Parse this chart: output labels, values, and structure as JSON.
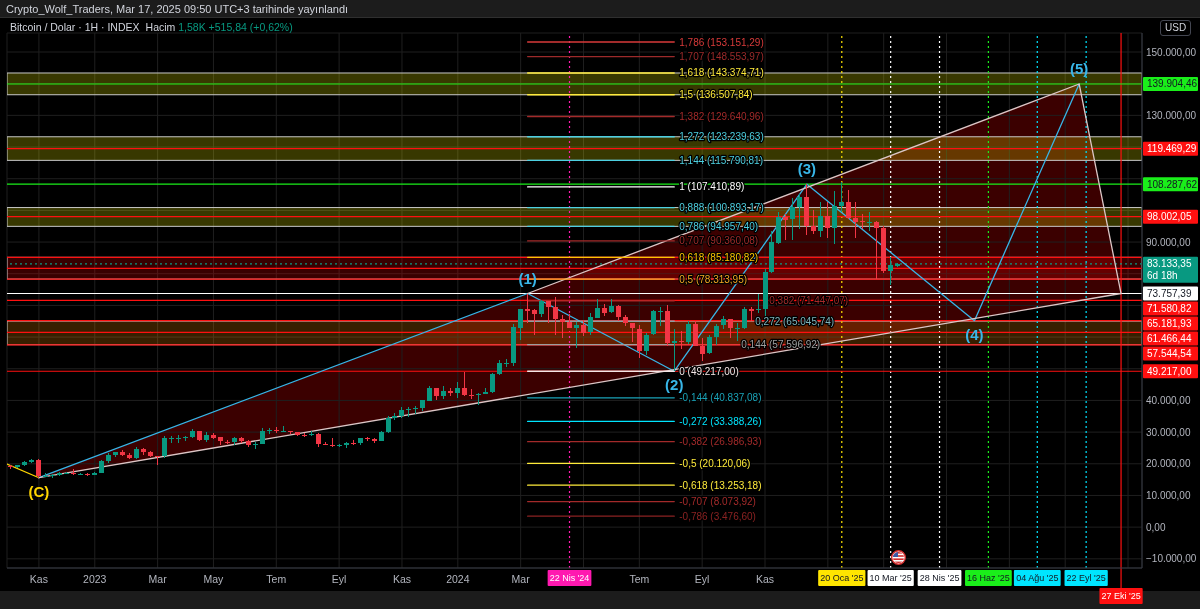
{
  "chart_data": {
    "type": "candlestick",
    "title": "Bitcoin / Dolar · 1H · INDEX",
    "subtitle": "Hacim 1,58K +515,84 (+0,62%)",
    "x": [
      "2022-10-10",
      "2022-10-17",
      "2022-10-24",
      "2022-10-31",
      "2022-11-07",
      "2022-11-14",
      "2022-11-21",
      "2022-11-28",
      "2022-12-05",
      "2022-12-12",
      "2022-12-19",
      "2022-12-26",
      "2023-01-02",
      "2023-01-09",
      "2023-01-16",
      "2023-01-23",
      "2023-01-30",
      "2023-02-06",
      "2023-02-13",
      "2023-02-20",
      "2023-02-27",
      "2023-03-06",
      "2023-03-13",
      "2023-03-20",
      "2023-03-27",
      "2023-04-03",
      "2023-04-10",
      "2023-04-17",
      "2023-04-24",
      "2023-05-01",
      "2023-05-08",
      "2023-05-15",
      "2023-05-22",
      "2023-05-29",
      "2023-06-05",
      "2023-06-12",
      "2023-06-19",
      "2023-06-26",
      "2023-07-03",
      "2023-07-10",
      "2023-07-17",
      "2023-07-24",
      "2023-07-31",
      "2023-08-07",
      "2023-08-14",
      "2023-08-21",
      "2023-08-28",
      "2023-09-04",
      "2023-09-11",
      "2023-09-18",
      "2023-09-25",
      "2023-10-02",
      "2023-10-09",
      "2023-10-16",
      "2023-10-23",
      "2023-10-30",
      "2023-11-06",
      "2023-11-13",
      "2023-11-20",
      "2023-11-27",
      "2023-12-04",
      "2023-12-11",
      "2023-12-18",
      "2023-12-25",
      "2024-01-01",
      "2024-01-08",
      "2024-01-15",
      "2024-01-22",
      "2024-01-29",
      "2024-02-05",
      "2024-02-12",
      "2024-02-19",
      "2024-02-26",
      "2024-03-04",
      "2024-03-11",
      "2024-03-18",
      "2024-03-25",
      "2024-04-01",
      "2024-04-08",
      "2024-04-15",
      "2024-04-22",
      "2024-04-29",
      "2024-05-06",
      "2024-05-13",
      "2024-05-20",
      "2024-05-27",
      "2024-06-03",
      "2024-06-10",
      "2024-06-17",
      "2024-06-24",
      "2024-07-01",
      "2024-07-08",
      "2024-07-15",
      "2024-07-22",
      "2024-07-29",
      "2024-08-05",
      "2024-08-12",
      "2024-08-19",
      "2024-08-26",
      "2024-09-02",
      "2024-09-09",
      "2024-09-16",
      "2024-09-23",
      "2024-09-30",
      "2024-10-07",
      "2024-10-14",
      "2024-10-21",
      "2024-10-28",
      "2024-11-04",
      "2024-11-11",
      "2024-11-18",
      "2024-11-25",
      "2024-12-02",
      "2024-12-09",
      "2024-12-16",
      "2024-12-23",
      "2024-12-30",
      "2025-01-06",
      "2025-01-13",
      "2025-01-20",
      "2025-01-27",
      "2025-02-03",
      "2025-02-10",
      "2025-02-17",
      "2025-02-24",
      "2025-03-03",
      "2025-03-10",
      "2025-03-17"
    ],
    "ohlc": [
      [
        19200,
        19600,
        18200,
        19100
      ],
      [
        19100,
        19700,
        18700,
        19600
      ],
      [
        19600,
        21000,
        19200,
        20600
      ],
      [
        20600,
        21500,
        20100,
        21200
      ],
      [
        21200,
        21500,
        15600,
        16300
      ],
      [
        16300,
        17200,
        15800,
        16300
      ],
      [
        16300,
        16800,
        15500,
        16500
      ],
      [
        16500,
        17400,
        16100,
        17100
      ],
      [
        17100,
        17400,
        16900,
        17100
      ],
      [
        17100,
        18400,
        16500,
        16800
      ],
      [
        16800,
        17100,
        16400,
        16800
      ],
      [
        16800,
        17000,
        16300,
        16500
      ],
      [
        16500,
        17400,
        16500,
        17100
      ],
      [
        17100,
        21300,
        17100,
        20900
      ],
      [
        20900,
        23400,
        20400,
        22700
      ],
      [
        22700,
        23800,
        22300,
        23700
      ],
      [
        23700,
        24200,
        22600,
        22900
      ],
      [
        22900,
        23500,
        21500,
        21800
      ],
      [
        21800,
        25300,
        21400,
        24600
      ],
      [
        24600,
        25100,
        22800,
        23600
      ],
      [
        23600,
        23900,
        22000,
        22400
      ],
      [
        22400,
        22600,
        19600,
        22200
      ],
      [
        22200,
        28900,
        21900,
        28000
      ],
      [
        28000,
        28900,
        26600,
        28000
      ],
      [
        28000,
        29200,
        26500,
        28200
      ],
      [
        28200,
        28800,
        27300,
        28300
      ],
      [
        28300,
        31000,
        28200,
        30300
      ],
      [
        30300,
        30500,
        27100,
        27600
      ],
      [
        27600,
        30000,
        27000,
        29200
      ],
      [
        29200,
        29800,
        27700,
        28400
      ],
      [
        28400,
        28500,
        25800,
        27000
      ],
      [
        27000,
        27600,
        26300,
        26800
      ],
      [
        26800,
        28500,
        25900,
        28100
      ],
      [
        28100,
        28500,
        26600,
        27100
      ],
      [
        27100,
        27400,
        25400,
        25900
      ],
      [
        25900,
        26800,
        24800,
        26300
      ],
      [
        26300,
        31400,
        26300,
        30500
      ],
      [
        30500,
        31300,
        29500,
        30600
      ],
      [
        30600,
        31500,
        29700,
        30200
      ],
      [
        30200,
        31800,
        30000,
        30300
      ],
      [
        30300,
        30400,
        29500,
        30100
      ],
      [
        30100,
        30100,
        28900,
        29200
      ],
      [
        29200,
        29700,
        28600,
        29100
      ],
      [
        29100,
        30200,
        28700,
        29300
      ],
      [
        29300,
        29700,
        25200,
        26100
      ],
      [
        26100,
        26800,
        25800,
        26000
      ],
      [
        26000,
        28100,
        25400,
        25800
      ],
      [
        25800,
        26400,
        25400,
        25800
      ],
      [
        25800,
        26900,
        24900,
        26500
      ],
      [
        26500,
        27500,
        26000,
        26300
      ],
      [
        26300,
        28100,
        26000,
        28000
      ],
      [
        28000,
        28600,
        27200,
        27900
      ],
      [
        27900,
        28000,
        26500,
        27200
      ],
      [
        27200,
        30400,
        27100,
        30000
      ],
      [
        30000,
        35200,
        29800,
        34500
      ],
      [
        34500,
        36000,
        33900,
        35100
      ],
      [
        35100,
        38000,
        34500,
        37100
      ],
      [
        37100,
        38000,
        34800,
        37400
      ],
      [
        37400,
        38400,
        35600,
        37500
      ],
      [
        37500,
        40000,
        36700,
        40000
      ],
      [
        40000,
        44700,
        39900,
        44000
      ],
      [
        44000,
        44000,
        40200,
        41400
      ],
      [
        41400,
        44400,
        40500,
        43000
      ],
      [
        43000,
        43800,
        41300,
        42300
      ],
      [
        42300,
        45900,
        40800,
        43900
      ],
      [
        43900,
        49000,
        41500,
        41700
      ],
      [
        41700,
        43600,
        40300,
        41600
      ],
      [
        41600,
        42300,
        38600,
        42000
      ],
      [
        42000,
        43900,
        41900,
        42600
      ],
      [
        42600,
        48600,
        42300,
        48300
      ],
      [
        48300,
        52800,
        48100,
        51700
      ],
      [
        51700,
        53000,
        50600,
        51700
      ],
      [
        51700,
        64000,
        50900,
        63100
      ],
      [
        63100,
        69000,
        59000,
        69000
      ],
      [
        69000,
        73757.39,
        64500,
        68400
      ],
      [
        68400,
        68900,
        60800,
        67200
      ],
      [
        67200,
        71800,
        66400,
        71300
      ],
      [
        71300,
        71300,
        64500,
        69400
      ],
      [
        69400,
        72800,
        60800,
        65700
      ],
      [
        65700,
        66900,
        59600,
        64900
      ],
      [
        64900,
        67200,
        62800,
        63100
      ],
      [
        63100,
        64700,
        56600,
        63900
      ],
      [
        63900,
        65500,
        60200,
        61500
      ],
      [
        61500,
        67700,
        60800,
        66300
      ],
      [
        66300,
        72000,
        66100,
        69300
      ],
      [
        69300,
        70600,
        66700,
        67800
      ],
      [
        67800,
        72000,
        67600,
        69700
      ],
      [
        69700,
        70200,
        65100,
        66200
      ],
      [
        66200,
        66900,
        63400,
        64300
      ],
      [
        64300,
        64500,
        58400,
        62700
      ],
      [
        62700,
        63800,
        53500,
        55900
      ],
      [
        55900,
        61400,
        54300,
        60800
      ],
      [
        60800,
        68400,
        60600,
        68200
      ],
      [
        68200,
        69400,
        63500,
        68300
      ],
      [
        68300,
        70000,
        57100,
        58200
      ],
      [
        58200,
        62700,
        49217,
        58700
      ],
      [
        58700,
        61800,
        56100,
        58400
      ],
      [
        58400,
        65000,
        57800,
        64200
      ],
      [
        64200,
        65000,
        57200,
        57300
      ],
      [
        57300,
        59800,
        52600,
        54900
      ],
      [
        54900,
        60700,
        54600,
        60000
      ],
      [
        60000,
        64100,
        57600,
        63600
      ],
      [
        63600,
        66500,
        62700,
        65600
      ],
      [
        65600,
        65700,
        59800,
        62800
      ],
      [
        62800,
        64500,
        58900,
        62900
      ],
      [
        62900,
        69400,
        62400,
        69000
      ],
      [
        69000,
        69500,
        65100,
        68400
      ],
      [
        68400,
        73600,
        67500,
        68800
      ],
      [
        68800,
        81500,
        66800,
        80400
      ],
      [
        80400,
        93500,
        80200,
        89900
      ],
      [
        89900,
        99600,
        89400,
        98000
      ],
      [
        98000,
        98900,
        90800,
        97200
      ],
      [
        97200,
        104000,
        90500,
        101100
      ],
      [
        101100,
        105300,
        94200,
        104300
      ],
      [
        104300,
        108287.62,
        92200,
        95200
      ],
      [
        95200,
        100000,
        92500,
        93700
      ],
      [
        93700,
        102700,
        91500,
        98300
      ],
      [
        98300,
        102700,
        91200,
        94500
      ],
      [
        94500,
        106000,
        89300,
        101300
      ],
      [
        101300,
        109000,
        99500,
        102600
      ],
      [
        102600,
        106400,
        97200,
        97700
      ],
      [
        97700,
        102500,
        91200,
        96500
      ],
      [
        96500,
        98800,
        94100,
        96100
      ],
      [
        96100,
        99500,
        93400,
        96300
      ],
      [
        96300,
        96500,
        78200,
        94300
      ],
      [
        94300,
        95000,
        80100,
        80700
      ],
      [
        80700,
        85300,
        76600,
        82617.51
      ],
      [
        82617.51,
        83500,
        82000,
        83133.35
      ]
    ],
    "xlim": [
      "2022-10-06",
      "2025-11-17"
    ],
    "xticks": [
      {
        "value": "2022-11-07",
        "label": "Kas"
      },
      {
        "value": "2023-01-02",
        "label": "2023"
      },
      {
        "value": "2023-03-06",
        "label": "Mar"
      },
      {
        "value": "2023-05-01",
        "label": "May"
      },
      {
        "value": "2023-07-03",
        "label": "Tem"
      },
      {
        "value": "2023-09-04",
        "label": "Eyl"
      },
      {
        "value": "2023-11-06",
        "label": "Kas"
      },
      {
        "value": "2024-01-01",
        "label": "2024"
      },
      {
        "value": "2024-03-04",
        "label": "Mar"
      },
      {
        "value": "2024-05-06",
        "label": null
      },
      {
        "value": "2024-07-01",
        "label": "Tem"
      },
      {
        "value": "2024-09-02",
        "label": "Eyl"
      },
      {
        "value": "2024-11-04",
        "label": "Kas"
      },
      {
        "value": "2025-01-06",
        "label": null
      },
      {
        "value": "2025-03-03",
        "label": null
      },
      {
        "value": "2025-05-05",
        "label": null
      },
      {
        "value": "2025-07-07",
        "label": null
      },
      {
        "value": "2025-09-01",
        "label": null
      },
      {
        "value": "2025-11-03",
        "label": null
      }
    ],
    "ylim": [
      -12900,
      156000
    ],
    "yticks": [
      {
        "value": -10000,
        "label": "−10.000,00"
      },
      {
        "value": 0,
        "label": "0,00"
      },
      {
        "value": 10000,
        "label": "10.000,00"
      },
      {
        "value": 20000,
        "label": "20.000,00"
      },
      {
        "value": 30000,
        "label": "30.000,00"
      },
      {
        "value": 40000,
        "label": "40.000,00"
      },
      {
        "value": 50000,
        "label": null
      },
      {
        "value": 60000,
        "label": null
      },
      {
        "value": 70000,
        "label": null
      },
      {
        "value": 80000,
        "label": null
      },
      {
        "value": 90000,
        "label": "90.000,00"
      },
      {
        "value": 100000,
        "label": null
      },
      {
        "value": 110000,
        "label": null
      },
      {
        "value": 120000,
        "label": null
      },
      {
        "value": 130000,
        "label": "130.000,00"
      },
      {
        "value": 140000,
        "label": null
      },
      {
        "value": 150000,
        "label": "150.000,00"
      }
    ],
    "grid": true,
    "series": [
      {
        "type": "line",
        "color": "#ffd600",
        "x": [
          "2022-10-06",
          "2022-11-07"
        ],
        "values": [
          19900,
          15600
        ]
      },
      {
        "type": "line",
        "color": "#38b6e8",
        "x": [
          "2022-11-07",
          "2024-03-11",
          "2024-08-05",
          "2024-12-16",
          "2025-06-02",
          "2025-09-15"
        ],
        "values": [
          15600,
          73757.39,
          49217,
          108287.62,
          65181.93,
          139904.46
        ]
      },
      {
        "type": "line",
        "color": "#dcc6c6",
        "x": [
          "2024-03-11",
          "2025-09-15",
          "2025-10-27"
        ],
        "values": [
          73757.39,
          139904.46,
          73757.39
        ]
      },
      {
        "type": "line",
        "color": "#dcc6c6",
        "x": [
          "2022-11-07",
          "2025-10-27"
        ],
        "values": [
          15600,
          73757.39
        ]
      },
      {
        "type": "line",
        "name": "1,786 (153.151,29)",
        "color": "#d83a3a",
        "x": [
          "2024-03-11",
          "2024-08-05"
        ],
        "values": [
          153151.29,
          153151.29
        ]
      },
      {
        "type": "line",
        "name": "1,707 (148.553,97)",
        "color": "#9c2a2a",
        "x": [
          "2024-03-11",
          "2024-08-05"
        ],
        "values": [
          148553.97,
          148553.97
        ]
      },
      {
        "type": "line",
        "name": "1,618 (143.374,71)",
        "color": "#ffeb3b",
        "x": [
          "2024-03-11",
          "2024-08-05"
        ],
        "values": [
          143374.71,
          143374.71
        ]
      },
      {
        "type": "line",
        "name": "1,5 (136.507,84)",
        "color": "#ffeb3b",
        "x": [
          "2024-03-11",
          "2024-08-05"
        ],
        "values": [
          136507.84,
          136507.84
        ]
      },
      {
        "type": "line",
        "name": "1,382 (129.640,96)",
        "color": "#a32a2a",
        "x": [
          "2024-03-11",
          "2024-08-05"
        ],
        "values": [
          129640.96,
          129640.96
        ]
      },
      {
        "type": "line",
        "name": "1,272 (123.239,63)",
        "color": "#4dd0e1",
        "x": [
          "2024-03-11",
          "2024-08-05"
        ],
        "values": [
          123239.63,
          123239.63
        ]
      },
      {
        "type": "line",
        "name": "1,144 (115.790,81)",
        "color": "#4dd0e1",
        "x": [
          "2024-03-11",
          "2024-08-05"
        ],
        "values": [
          115790.81,
          115790.81
        ]
      },
      {
        "type": "line",
        "name": "1 (107.410,89)",
        "color": "#ffffff",
        "x": [
          "2024-03-11",
          "2024-08-05"
        ],
        "values": [
          107410.89,
          107410.89
        ]
      },
      {
        "type": "line",
        "name": "0,888 (100.893,17)",
        "color": "#4dd0e1",
        "x": [
          "2024-03-11",
          "2024-08-05"
        ],
        "values": [
          100893.17,
          100893.17
        ]
      },
      {
        "type": "line",
        "name": "0,786 (94.957,40)",
        "color": "#4dd0e1",
        "x": [
          "2024-03-11",
          "2024-08-05"
        ],
        "values": [
          94957.4,
          94957.4
        ]
      },
      {
        "type": "line",
        "name": "0,707 (90.360,08)",
        "color": "#a32a2a",
        "x": [
          "2024-03-11",
          "2024-08-05"
        ],
        "values": [
          90360.08,
          90360.08
        ]
      },
      {
        "type": "line",
        "name": "0,618 (85.180,82)",
        "color": "#ffc400",
        "x": [
          "2024-03-11",
          "2024-08-05"
        ],
        "values": [
          85180.82,
          85180.82
        ]
      },
      {
        "type": "line",
        "name": "0,5 (78.313,95)",
        "color": "#f5a623",
        "x": [
          "2024-03-11",
          "2024-08-05"
        ],
        "values": [
          78313.95,
          78313.95
        ]
      },
      {
        "type": "line",
        "name": "0,382 (71.447,07)",
        "color": "#a32a2a",
        "x": [
          "2024-03-11",
          "2024-08-05"
        ],
        "values": [
          71447.07,
          71447.07
        ]
      },
      {
        "type": "line",
        "name": "0,272 (65.045,74)",
        "color": "#7fb3bb",
        "x": [
          "2024-03-11",
          "2024-08-05"
        ],
        "values": [
          65045.74,
          65045.74
        ]
      },
      {
        "type": "line",
        "name": "0,144 (57.596,92)",
        "color": "#9e9e9e",
        "x": [
          "2024-03-11",
          "2024-08-05"
        ],
        "values": [
          57596.92,
          57596.92
        ]
      },
      {
        "type": "line",
        "name": "0 (49.217,00)",
        "color": "#f4e6e6",
        "x": [
          "2024-03-11",
          "2024-08-05"
        ],
        "values": [
          49217.0,
          49217.0
        ]
      },
      {
        "type": "line",
        "name": "-0,144 (40.837,08)",
        "color": "#1aa3b8",
        "x": [
          "2024-03-11",
          "2024-08-05"
        ],
        "values": [
          40837.08,
          40837.08
        ]
      },
      {
        "type": "line",
        "name": "-0,272 (33.388,26)",
        "color": "#00e5ff",
        "x": [
          "2024-03-11",
          "2024-08-05"
        ],
        "values": [
          33388.26,
          33388.26
        ]
      },
      {
        "type": "line",
        "name": "-0,382 (26.986,93)",
        "color": "#a32a2a",
        "x": [
          "2024-03-11",
          "2024-08-05"
        ],
        "values": [
          26986.93,
          26986.93
        ]
      },
      {
        "type": "line",
        "name": "-0,5 (20.120,06)",
        "color": "#ffeb3b",
        "x": [
          "2024-03-11",
          "2024-08-05"
        ],
        "values": [
          20120.06,
          20120.06
        ]
      },
      {
        "type": "line",
        "name": "-0,618 (13.253,18)",
        "color": "#ffeb3b",
        "x": [
          "2024-03-11",
          "2024-08-05"
        ],
        "values": [
          13253.18,
          13253.18
        ]
      },
      {
        "type": "line",
        "name": "-0,707 (8.073,92)",
        "color": "#a32a2a",
        "x": [
          "2024-03-11",
          "2024-08-05"
        ],
        "values": [
          8073.92,
          8073.92
        ]
      },
      {
        "type": "line",
        "name": "-0,786 (3.476,60)",
        "color": "#8b2222",
        "x": [
          "2024-03-11",
          "2024-08-05"
        ],
        "values": [
          3476.6,
          3476.6
        ]
      }
    ],
    "bands": [
      {
        "axis": "y",
        "from": 136507.84,
        "to": 143374.71,
        "color": "#ffff00"
      },
      {
        "axis": "y",
        "from": 115790.81,
        "to": 123239.63,
        "color": "#ffff00"
      },
      {
        "axis": "y",
        "from": 94957.4,
        "to": 100893.17,
        "color": "#ffff00"
      },
      {
        "axis": "y",
        "from": 78313.95,
        "to": 85180.82,
        "color": "#ff0000"
      },
      {
        "axis": "y",
        "from": 57596.92,
        "to": 65045.74,
        "color": "#ff8c00"
      }
    ],
    "ref_lines": [
      {
        "axis": "x",
        "value": "2024-04-22",
        "label": "22 Nis '24",
        "color": "#ff19b0",
        "line_style": "dotted"
      },
      {
        "axis": "x",
        "value": "2025-01-20",
        "label": "20 Oca '25",
        "color": "#ffe500",
        "line_style": "dotted"
      },
      {
        "axis": "x",
        "value": "2025-03-10",
        "label": "10 Mar '25",
        "color": "#ffffff",
        "line_style": "dotted"
      },
      {
        "axis": "x",
        "value": "2025-04-28",
        "label": "28 Nis '25",
        "color": "#ffffff",
        "line_style": "dotted"
      },
      {
        "axis": "x",
        "value": "2025-06-16",
        "label": "16 Haz '25",
        "color": "#1aee1a",
        "line_style": "dotted"
      },
      {
        "axis": "x",
        "value": "2025-08-04",
        "label": "04 Ağu '25",
        "color": "#00e5ff",
        "line_style": "dotted"
      },
      {
        "axis": "x",
        "value": "2025-09-22",
        "label": "22 Eyl '25",
        "color": "#00e5ff",
        "line_style": "dotted"
      },
      {
        "axis": "x",
        "value": "2025-10-27",
        "label": "27 Eki '25",
        "color": "#ff1010",
        "line_style": "solid"
      },
      {
        "axis": "y",
        "value": 85180.82,
        "color": "#ff1010"
      },
      {
        "axis": "y",
        "value": 81700,
        "color": "#ff1010"
      },
      {
        "axis": "y",
        "value": 78313.95,
        "color": "#ff1010"
      },
      {
        "axis": "y",
        "value": 139904.46,
        "label": "139.904,46",
        "color": "#1aee1a"
      },
      {
        "axis": "y",
        "value": 119469.29,
        "label": "119.469,29",
        "color": "#ff1010"
      },
      {
        "axis": "y",
        "value": 108287.62,
        "label": "108.287,62",
        "color": "#1aee1a"
      },
      {
        "axis": "y",
        "value": 98002.05,
        "label": "98.002,05",
        "color": "#ff1010"
      },
      {
        "axis": "y",
        "value": 83133.35,
        "label": "83.133,35 6d 18h",
        "color": "#089981",
        "line_style": "dotted"
      },
      {
        "axis": "y",
        "value": 73757.39,
        "label": "73.757,39",
        "color": "#ffffff"
      },
      {
        "axis": "y",
        "value": 71580.82,
        "label": "71.580,82",
        "color": "#ff1010"
      },
      {
        "axis": "y",
        "value": 65181.93,
        "label": "65.181,93",
        "color": "#ff1010"
      },
      {
        "axis": "y",
        "value": 61466.44,
        "label": "61.466,44",
        "color": "#ff1010"
      },
      {
        "axis": "y",
        "value": 57544.54,
        "label": "57.544,54",
        "color": "#ff1010"
      },
      {
        "axis": "y",
        "value": 49217.0,
        "label": "49.217,00",
        "color": "#ff1010"
      }
    ],
    "annotations": [
      "Crypto_Wolf_Traders, Mar 17, 2025 09:50 UTC+3 tarihinde yayınlandı",
      "USD",
      {
        "text": "(C)",
        "x": "2022-11-07",
        "y": 15600
      },
      {
        "text": "(1)",
        "x": "2024-03-11",
        "y": 73757.39
      },
      {
        "text": "(2)",
        "x": "2024-08-05",
        "y": 49217
      },
      {
        "text": "(3)",
        "x": "2024-12-16",
        "y": 108287.62
      },
      {
        "text": "(4)",
        "x": "2025-06-02",
        "y": 65181.93
      },
      {
        "text": "(5)",
        "x": "2025-09-15",
        "y": 139904.46
      }
    ]
  }
}
